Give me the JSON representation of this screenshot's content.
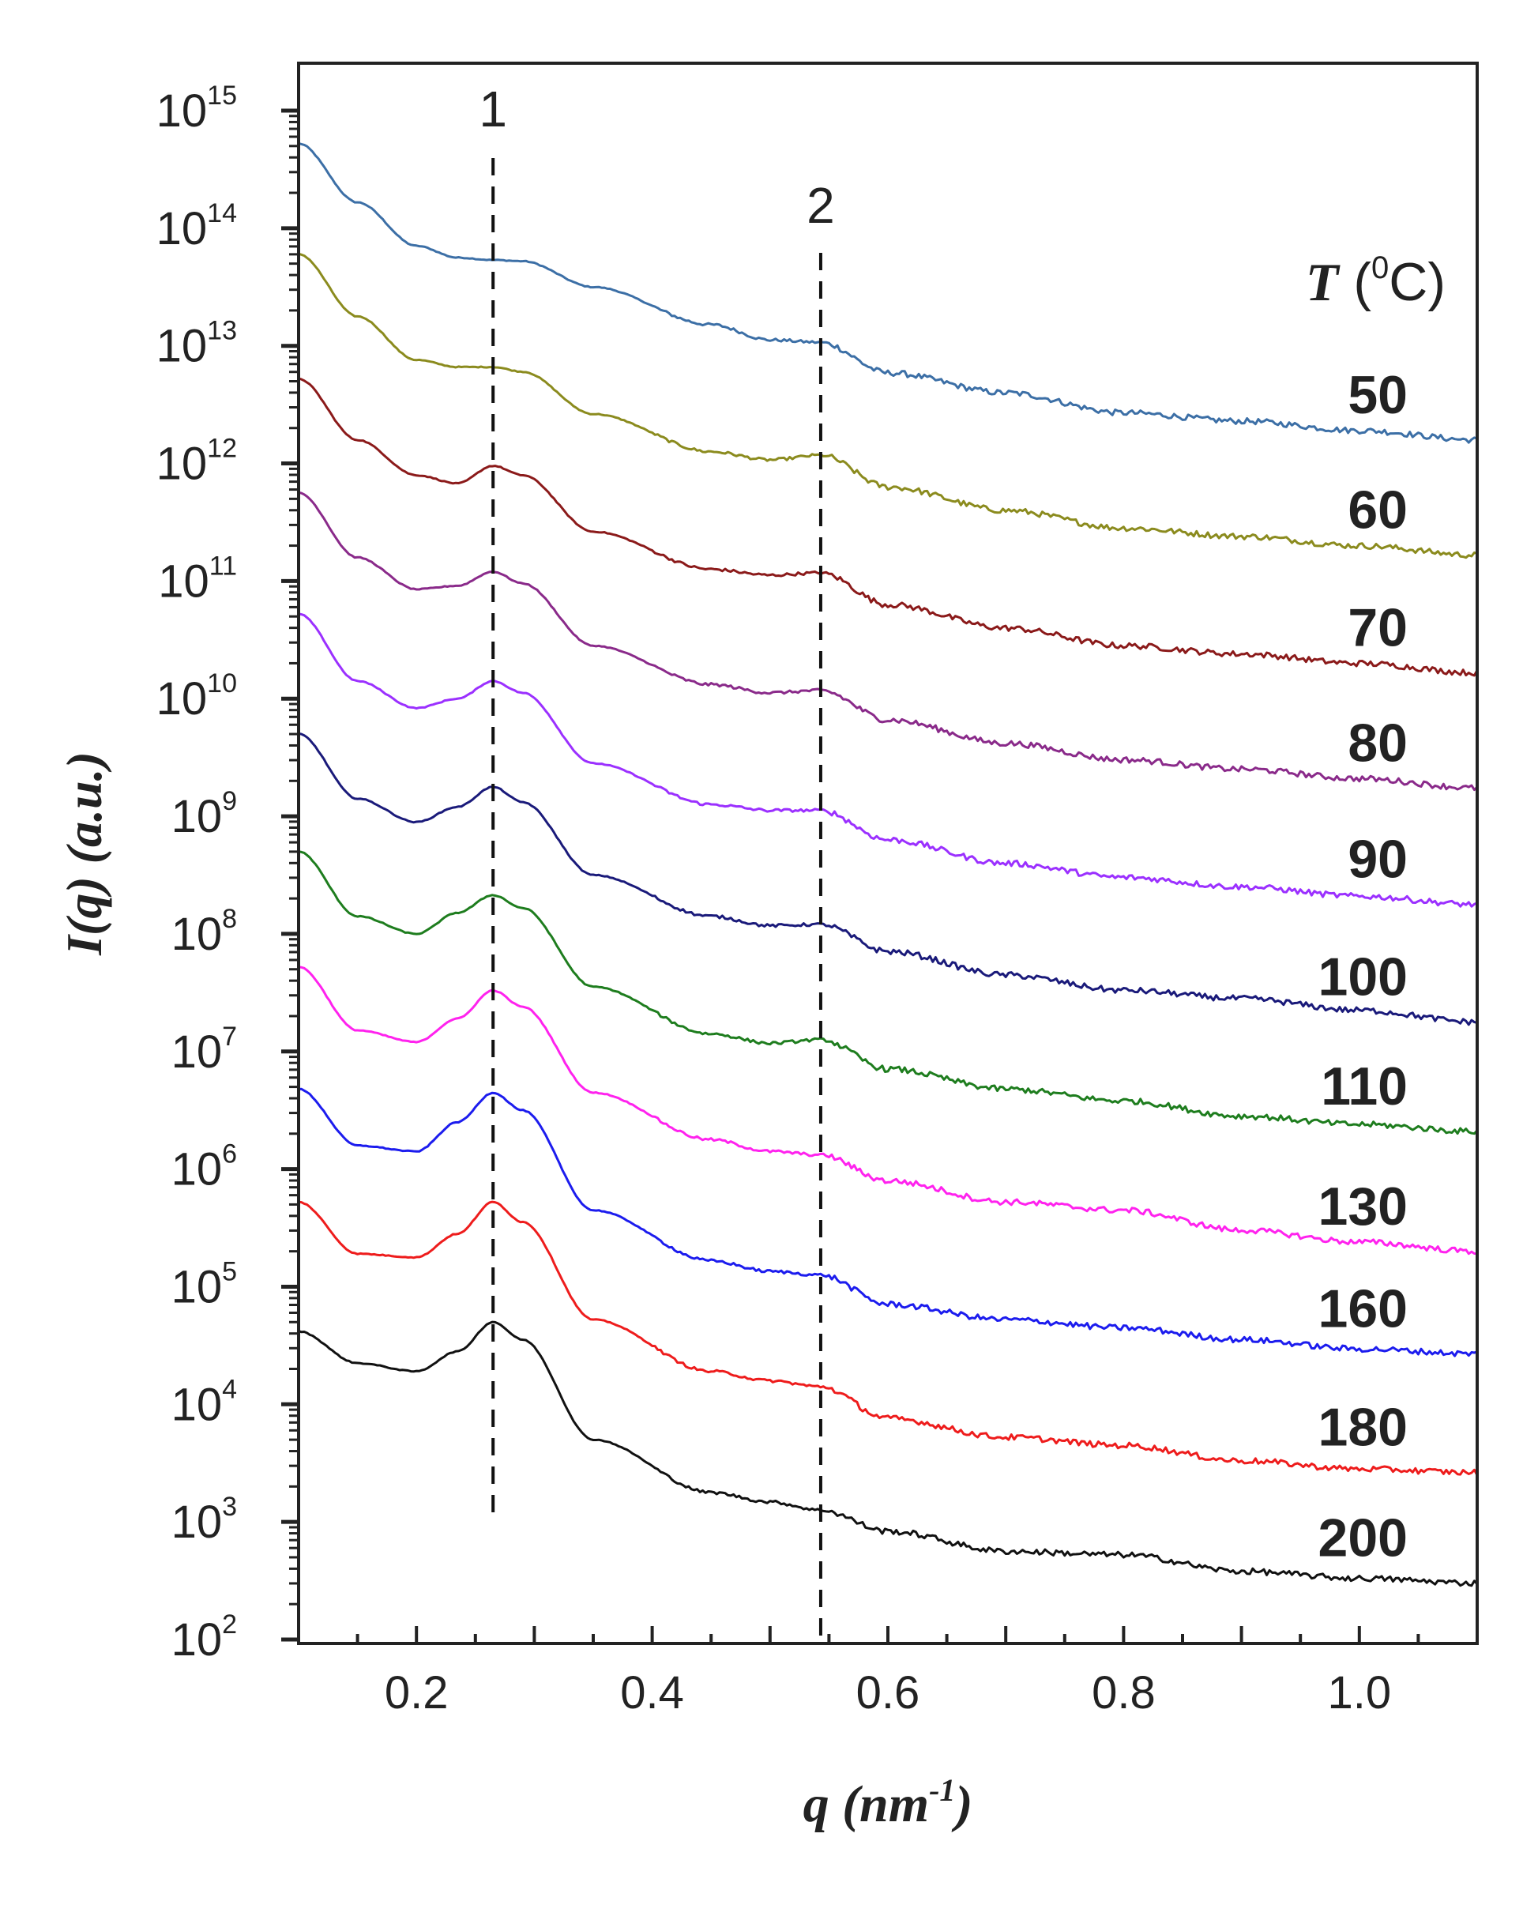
{
  "chart_data": {
    "type": "line",
    "title": "",
    "xlabel": "q (nm",
    "xlabel_sup": "-1",
    "xlabel_close": ")",
    "ylabel": "I(q) (a.u.)",
    "yscale": "log",
    "xlim": [
      0.1,
      1.1
    ],
    "ylim_exponents": [
      2,
      15
    ],
    "x_ticks": [
      "0.2",
      "0.4",
      "0.6",
      "0.8",
      "1.0"
    ],
    "x_tick_values": [
      0.2,
      0.4,
      0.6,
      0.8,
      1.0
    ],
    "y_tick_base": "10",
    "y_tick_exponents": [
      "2",
      "3",
      "4",
      "5",
      "6",
      "7",
      "8",
      "9",
      "10",
      "11",
      "12",
      "13",
      "14",
      "15"
    ],
    "legend_title": "T (°C)",
    "legend_title_parts": {
      "symbol": "T",
      "open": " (",
      "degree": "0",
      "unit": "C)"
    },
    "peak_markers": [
      {
        "label": "1",
        "q": 0.265
      },
      {
        "label": "2",
        "q": 0.543
      }
    ],
    "series": [
      {
        "name": "50",
        "color": "#3c6fa6",
        "points": [
          [
            0.1,
            14.72
          ],
          [
            0.15,
            14.22
          ],
          [
            0.2,
            13.85
          ],
          [
            0.235,
            13.75
          ],
          [
            0.265,
            13.73
          ],
          [
            0.29,
            13.72
          ],
          [
            0.35,
            13.5
          ],
          [
            0.45,
            13.18
          ],
          [
            0.5,
            13.05
          ],
          [
            0.543,
            13.03
          ],
          [
            0.6,
            12.77
          ],
          [
            0.7,
            12.6
          ],
          [
            0.8,
            12.43
          ],
          [
            0.9,
            12.36
          ],
          [
            1.0,
            12.28
          ],
          [
            1.1,
            12.2
          ]
        ]
      },
      {
        "name": "60",
        "color": "#8b8b1e",
        "points": [
          [
            0.1,
            13.78
          ],
          [
            0.15,
            13.25
          ],
          [
            0.2,
            12.88
          ],
          [
            0.235,
            12.82
          ],
          [
            0.265,
            12.82
          ],
          [
            0.29,
            12.78
          ],
          [
            0.35,
            12.42
          ],
          [
            0.45,
            12.1
          ],
          [
            0.5,
            12.03
          ],
          [
            0.543,
            12.07
          ],
          [
            0.6,
            11.8
          ],
          [
            0.7,
            11.6
          ],
          [
            0.8,
            11.45
          ],
          [
            0.9,
            11.38
          ],
          [
            1.0,
            11.3
          ],
          [
            1.1,
            11.22
          ]
        ]
      },
      {
        "name": "70",
        "color": "#8b1a1a",
        "points": [
          [
            0.1,
            12.72
          ],
          [
            0.15,
            12.2
          ],
          [
            0.2,
            11.9
          ],
          [
            0.235,
            11.83
          ],
          [
            0.265,
            11.98
          ],
          [
            0.29,
            11.9
          ],
          [
            0.35,
            11.42
          ],
          [
            0.45,
            11.1
          ],
          [
            0.5,
            11.05
          ],
          [
            0.543,
            11.07
          ],
          [
            0.6,
            10.8
          ],
          [
            0.7,
            10.6
          ],
          [
            0.8,
            10.45
          ],
          [
            0.9,
            10.38
          ],
          [
            1.0,
            10.3
          ],
          [
            1.1,
            10.22
          ]
        ]
      },
      {
        "name": "80",
        "color": "#8a2a8a",
        "points": [
          [
            0.1,
            11.75
          ],
          [
            0.15,
            11.2
          ],
          [
            0.2,
            10.93
          ],
          [
            0.235,
            10.96
          ],
          [
            0.265,
            11.08
          ],
          [
            0.29,
            10.98
          ],
          [
            0.35,
            10.45
          ],
          [
            0.45,
            10.12
          ],
          [
            0.5,
            10.05
          ],
          [
            0.543,
            10.07
          ],
          [
            0.6,
            9.82
          ],
          [
            0.7,
            9.62
          ],
          [
            0.8,
            9.48
          ],
          [
            0.9,
            9.4
          ],
          [
            1.0,
            9.32
          ],
          [
            1.1,
            9.24
          ]
        ]
      },
      {
        "name": "90",
        "color": "#9b30ff",
        "points": [
          [
            0.1,
            10.72
          ],
          [
            0.15,
            10.15
          ],
          [
            0.2,
            9.92
          ],
          [
            0.235,
            10.0
          ],
          [
            0.265,
            10.15
          ],
          [
            0.29,
            10.05
          ],
          [
            0.35,
            9.45
          ],
          [
            0.45,
            9.1
          ],
          [
            0.5,
            9.05
          ],
          [
            0.543,
            9.05
          ],
          [
            0.6,
            8.8
          ],
          [
            0.7,
            8.6
          ],
          [
            0.8,
            8.48
          ],
          [
            0.9,
            8.4
          ],
          [
            1.0,
            8.32
          ],
          [
            1.1,
            8.25
          ]
        ]
      },
      {
        "name": "100",
        "color": "#1a1a7a",
        "points": [
          [
            0.1,
            9.7
          ],
          [
            0.15,
            9.15
          ],
          [
            0.2,
            8.95
          ],
          [
            0.235,
            9.08
          ],
          [
            0.265,
            9.25
          ],
          [
            0.29,
            9.12
          ],
          [
            0.35,
            8.5
          ],
          [
            0.45,
            8.15
          ],
          [
            0.5,
            8.07
          ],
          [
            0.543,
            8.08
          ],
          [
            0.6,
            7.85
          ],
          [
            0.7,
            7.65
          ],
          [
            0.8,
            7.52
          ],
          [
            0.9,
            7.45
          ],
          [
            1.0,
            7.35
          ],
          [
            1.1,
            7.25
          ]
        ]
      },
      {
        "name": "110",
        "color": "#1e7d1e",
        "points": [
          [
            0.1,
            8.7
          ],
          [
            0.15,
            8.15
          ],
          [
            0.2,
            8.0
          ],
          [
            0.235,
            8.18
          ],
          [
            0.265,
            8.33
          ],
          [
            0.29,
            8.22
          ],
          [
            0.35,
            7.55
          ],
          [
            0.45,
            7.15
          ],
          [
            0.5,
            7.07
          ],
          [
            0.543,
            7.1
          ],
          [
            0.6,
            6.85
          ],
          [
            0.7,
            6.68
          ],
          [
            0.8,
            6.58
          ],
          [
            0.9,
            6.45
          ],
          [
            1.0,
            6.38
          ],
          [
            1.1,
            6.32
          ]
        ]
      },
      {
        "name": "130",
        "color": "#ff22ee",
        "points": [
          [
            0.1,
            7.72
          ],
          [
            0.15,
            7.18
          ],
          [
            0.2,
            7.08
          ],
          [
            0.235,
            7.28
          ],
          [
            0.265,
            7.52
          ],
          [
            0.29,
            7.38
          ],
          [
            0.35,
            6.65
          ],
          [
            0.45,
            6.25
          ],
          [
            0.5,
            6.15
          ],
          [
            0.543,
            6.12
          ],
          [
            0.6,
            5.9
          ],
          [
            0.7,
            5.72
          ],
          [
            0.8,
            5.65
          ],
          [
            0.9,
            5.48
          ],
          [
            1.0,
            5.38
          ],
          [
            1.1,
            5.3
          ]
        ]
      },
      {
        "name": "160",
        "color": "#1c1cee",
        "points": [
          [
            0.1,
            6.68
          ],
          [
            0.15,
            6.2
          ],
          [
            0.2,
            6.15
          ],
          [
            0.235,
            6.4
          ],
          [
            0.265,
            6.65
          ],
          [
            0.29,
            6.5
          ],
          [
            0.35,
            5.65
          ],
          [
            0.45,
            5.22
          ],
          [
            0.5,
            5.13
          ],
          [
            0.543,
            5.1
          ],
          [
            0.6,
            4.85
          ],
          [
            0.7,
            4.72
          ],
          [
            0.8,
            4.65
          ],
          [
            0.9,
            4.55
          ],
          [
            1.0,
            4.47
          ],
          [
            1.1,
            4.43
          ]
        ]
      },
      {
        "name": "180",
        "color": "#ee1c1c",
        "points": [
          [
            0.1,
            5.72
          ],
          [
            0.15,
            5.28
          ],
          [
            0.2,
            5.25
          ],
          [
            0.235,
            5.45
          ],
          [
            0.265,
            5.72
          ],
          [
            0.29,
            5.55
          ],
          [
            0.35,
            4.72
          ],
          [
            0.45,
            4.28
          ],
          [
            0.5,
            4.2
          ],
          [
            0.543,
            4.15
          ],
          [
            0.6,
            3.88
          ],
          [
            0.7,
            3.72
          ],
          [
            0.8,
            3.65
          ],
          [
            0.9,
            3.52
          ],
          [
            1.0,
            3.45
          ],
          [
            1.1,
            3.42
          ]
        ]
      },
      {
        "name": "200",
        "color": "#111111",
        "points": [
          [
            0.1,
            4.62
          ],
          [
            0.15,
            4.35
          ],
          [
            0.2,
            4.28
          ],
          [
            0.235,
            4.45
          ],
          [
            0.265,
            4.7
          ],
          [
            0.29,
            4.55
          ],
          [
            0.35,
            3.7
          ],
          [
            0.45,
            3.25
          ],
          [
            0.5,
            3.17
          ],
          [
            0.543,
            3.1
          ],
          [
            0.6,
            2.92
          ],
          [
            0.7,
            2.75
          ],
          [
            0.8,
            2.72
          ],
          [
            0.9,
            2.58
          ],
          [
            1.0,
            2.52
          ],
          [
            1.1,
            2.48
          ]
        ]
      }
    ]
  }
}
